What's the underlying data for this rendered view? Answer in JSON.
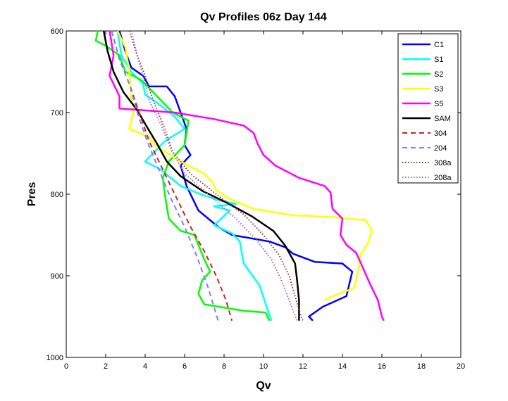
{
  "chart_data": {
    "type": "line",
    "title": "Qv Profiles 06z Day 144",
    "xlabel": "Qv",
    "ylabel": "Pres",
    "xlim": [
      0,
      20
    ],
    "ylim": [
      600,
      1000
    ],
    "y_reversed": true,
    "x_ticks": [
      "0",
      "2",
      "4",
      "6",
      "8",
      "10",
      "12",
      "14",
      "16",
      "18",
      "20"
    ],
    "y_ticks": [
      "600",
      "700",
      "800",
      "900",
      "1000"
    ],
    "grid": false,
    "legend_position": "top-right",
    "series": [
      {
        "name": "C1",
        "color": "#0000ff",
        "style": "solid",
        "points": [
          [
            2.7,
            600
          ],
          [
            3.0,
            625
          ],
          [
            3.3,
            645
          ],
          [
            3.9,
            655
          ],
          [
            4.2,
            668
          ],
          [
            5.1,
            668
          ],
          [
            5.5,
            680
          ],
          [
            5.8,
            700
          ],
          [
            6.1,
            720
          ],
          [
            6.0,
            740
          ],
          [
            6.3,
            752
          ],
          [
            5.8,
            765
          ],
          [
            6.1,
            790
          ],
          [
            6.7,
            820
          ],
          [
            7.7,
            840
          ],
          [
            8.4,
            850
          ],
          [
            10.3,
            858
          ],
          [
            11.1,
            865
          ],
          [
            11.5,
            873
          ],
          [
            12.6,
            883
          ],
          [
            14.0,
            885
          ],
          [
            14.5,
            895
          ],
          [
            14.2,
            925
          ],
          [
            13.0,
            938
          ],
          [
            12.3,
            950
          ],
          [
            12.5,
            955
          ]
        ]
      },
      {
        "name": "S1",
        "color": "#00ffff",
        "style": "solid",
        "points": [
          [
            2.6,
            600
          ],
          [
            2.8,
            630
          ],
          [
            3.3,
            650
          ],
          [
            3.9,
            665
          ],
          [
            4.0,
            678
          ],
          [
            4.6,
            688
          ],
          [
            5.5,
            705
          ],
          [
            6.0,
            720
          ],
          [
            5.0,
            735
          ],
          [
            4.0,
            760
          ],
          [
            4.8,
            770
          ],
          [
            5.8,
            790
          ],
          [
            6.8,
            800
          ],
          [
            7.8,
            808
          ],
          [
            8.6,
            812
          ],
          [
            7.5,
            815
          ],
          [
            8.3,
            820
          ],
          [
            7.5,
            838
          ],
          [
            8.4,
            848
          ],
          [
            8.8,
            858
          ],
          [
            9.0,
            885
          ],
          [
            9.8,
            912
          ],
          [
            10.3,
            948
          ],
          [
            10.4,
            955
          ]
        ]
      },
      {
        "name": "S2",
        "color": "#00ff00",
        "style": "solid",
        "points": [
          [
            1.6,
            600
          ],
          [
            1.5,
            612
          ],
          [
            2.0,
            618
          ],
          [
            2.7,
            630
          ],
          [
            3.0,
            650
          ],
          [
            3.8,
            660
          ],
          [
            4.6,
            680
          ],
          [
            5.4,
            700
          ],
          [
            6.2,
            710
          ],
          [
            6.0,
            740
          ],
          [
            5.2,
            760
          ],
          [
            4.9,
            780
          ],
          [
            5.0,
            800
          ],
          [
            5.2,
            830
          ],
          [
            5.8,
            845
          ],
          [
            6.5,
            850
          ],
          [
            6.7,
            862
          ],
          [
            7.0,
            880
          ],
          [
            7.3,
            895
          ],
          [
            6.9,
            905
          ],
          [
            6.7,
            922
          ],
          [
            7.0,
            935
          ],
          [
            9.0,
            943
          ],
          [
            10.1,
            945
          ],
          [
            10.3,
            955
          ]
        ]
      },
      {
        "name": "S3",
        "color": "#ffff00",
        "style": "solid",
        "points": [
          [
            2.6,
            600
          ],
          [
            3.0,
            620
          ],
          [
            3.2,
            650
          ],
          [
            3.3,
            680
          ],
          [
            3.4,
            700
          ],
          [
            3.2,
            720
          ],
          [
            4.2,
            730
          ],
          [
            4.5,
            740
          ],
          [
            5.8,
            760
          ],
          [
            7.0,
            775
          ],
          [
            7.4,
            785
          ],
          [
            7.6,
            795
          ],
          [
            8.2,
            805
          ],
          [
            9.5,
            818
          ],
          [
            11.5,
            826
          ],
          [
            13.5,
            828
          ],
          [
            15.2,
            832
          ],
          [
            15.5,
            845
          ],
          [
            15.3,
            860
          ],
          [
            14.9,
            875
          ],
          [
            14.8,
            895
          ],
          [
            14.6,
            915
          ],
          [
            13.5,
            925
          ],
          [
            13.1,
            930
          ]
        ]
      },
      {
        "name": "S5",
        "color": "#ff00ff",
        "style": "solid",
        "points": [
          [
            2.2,
            600
          ],
          [
            2.4,
            630
          ],
          [
            2.2,
            655
          ],
          [
            2.7,
            680
          ],
          [
            2.7,
            695
          ],
          [
            5.5,
            700
          ],
          [
            7.5,
            708
          ],
          [
            9.0,
            716
          ],
          [
            9.5,
            725
          ],
          [
            9.7,
            738
          ],
          [
            10.0,
            752
          ],
          [
            10.6,
            765
          ],
          [
            11.8,
            780
          ],
          [
            13.1,
            790
          ],
          [
            13.4,
            798
          ],
          [
            13.5,
            818
          ],
          [
            14.0,
            830
          ],
          [
            13.9,
            850
          ],
          [
            14.2,
            862
          ],
          [
            14.7,
            872
          ],
          [
            15.0,
            888
          ],
          [
            15.4,
            910
          ],
          [
            15.8,
            930
          ],
          [
            16.0,
            950
          ],
          [
            16.1,
            955
          ]
        ]
      },
      {
        "name": "SAM",
        "color": "#000000",
        "style": "solid",
        "points": [
          [
            1.9,
            600
          ],
          [
            2.1,
            625
          ],
          [
            2.4,
            650
          ],
          [
            2.9,
            675
          ],
          [
            3.6,
            697
          ],
          [
            4.1,
            718
          ],
          [
            4.6,
            738
          ],
          [
            5.1,
            760
          ],
          [
            5.8,
            778
          ],
          [
            6.9,
            796
          ],
          [
            8.1,
            810
          ],
          [
            9.4,
            827
          ],
          [
            10.5,
            845
          ],
          [
            11.1,
            863
          ],
          [
            11.6,
            885
          ],
          [
            11.7,
            905
          ],
          [
            11.8,
            930
          ],
          [
            11.8,
            955
          ]
        ]
      },
      {
        "name": "304",
        "color": "#cc2222",
        "style": "dashed",
        "points": [
          [
            2.3,
            600
          ],
          [
            2.7,
            635
          ],
          [
            3.2,
            665
          ],
          [
            3.7,
            700
          ],
          [
            4.2,
            735
          ],
          [
            4.9,
            770
          ],
          [
            5.6,
            805
          ],
          [
            6.3,
            840
          ],
          [
            7.0,
            870
          ],
          [
            7.6,
            900
          ],
          [
            8.1,
            930
          ],
          [
            8.4,
            955
          ]
        ]
      },
      {
        "name": "204",
        "color": "#7f7fff",
        "style": "dashed",
        "points": [
          [
            2.3,
            600
          ],
          [
            2.7,
            635
          ],
          [
            3.2,
            665
          ],
          [
            3.6,
            700
          ],
          [
            4.1,
            735
          ],
          [
            4.7,
            770
          ],
          [
            5.3,
            805
          ],
          [
            6.0,
            840
          ],
          [
            6.6,
            875
          ],
          [
            7.2,
            915
          ],
          [
            7.7,
            955
          ]
        ]
      },
      {
        "name": "308a",
        "color": "#993333",
        "style": "dotted",
        "points": [
          [
            3.2,
            600
          ],
          [
            3.6,
            630
          ],
          [
            4.0,
            655
          ],
          [
            4.4,
            685
          ],
          [
            5.0,
            720
          ],
          [
            5.4,
            748
          ],
          [
            6.3,
            775
          ],
          [
            7.6,
            800
          ],
          [
            9.0,
            825
          ],
          [
            10.0,
            850
          ],
          [
            10.8,
            875
          ],
          [
            11.3,
            900
          ],
          [
            11.6,
            925
          ],
          [
            11.9,
            950
          ],
          [
            12.0,
            955
          ]
        ]
      },
      {
        "name": "208a",
        "color": "#9966cc",
        "style": "dotted",
        "points": [
          [
            3.3,
            600
          ],
          [
            3.6,
            630
          ],
          [
            3.9,
            655
          ],
          [
            4.2,
            685
          ],
          [
            4.8,
            715
          ],
          [
            5.3,
            745
          ],
          [
            6.0,
            775
          ],
          [
            7.2,
            800
          ],
          [
            8.6,
            830
          ],
          [
            9.6,
            855
          ],
          [
            10.4,
            880
          ],
          [
            10.9,
            905
          ],
          [
            11.3,
            930
          ],
          [
            11.7,
            955
          ]
        ]
      }
    ]
  }
}
